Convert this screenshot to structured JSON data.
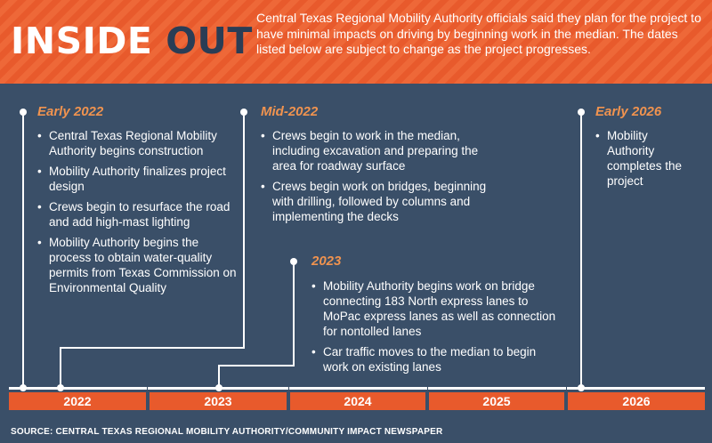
{
  "header": {
    "title_part1": "INSIDE",
    "title_part2": "OUT",
    "intro": "Central Texas Regional Mobility Authority officials said they plan for the project to have minimal impacts on driving by beginning work in the median. The dates listed below are subject to change as the project progresses."
  },
  "milestones": [
    {
      "label": "Early 2022",
      "items": [
        "Central Texas Regional Mobility Authority begins construction",
        "Mobility Authority finalizes project design",
        "Crews begin to resurface the road and add high-mast lighting",
        "Mobility Authority begins the process to obtain water-quality permits from Texas Commission on Environmental Quality"
      ]
    },
    {
      "label": "Mid-2022",
      "items": [
        "Crews begin to work in the median, including excavation and preparing the area for roadway surface",
        "Crews begin work on bridges, beginning with drilling, followed by columns and implementing the decks"
      ]
    },
    {
      "label": "2023",
      "items": [
        "Mobility Authority begins work on bridge connecting 183 North express lanes to MoPac express lanes as well as connection for nontolled lanes",
        "Car traffic moves to the median to begin work on existing lanes"
      ]
    },
    {
      "label": "Early 2026",
      "items": [
        "Mobility Authority completes the project"
      ]
    }
  ],
  "years": [
    "2022",
    "2023",
    "2024",
    "2025",
    "2026"
  ],
  "source": "SOURCE: CENTRAL TEXAS REGIONAL MOBILITY AUTHORITY/COMMUNITY IMPACT NEWSPAPER",
  "colors": {
    "accent_orange": "#e85a2c",
    "label_orange": "#f0934f",
    "panel_navy": "#3a4f68",
    "title_dark": "#2a3d55"
  }
}
